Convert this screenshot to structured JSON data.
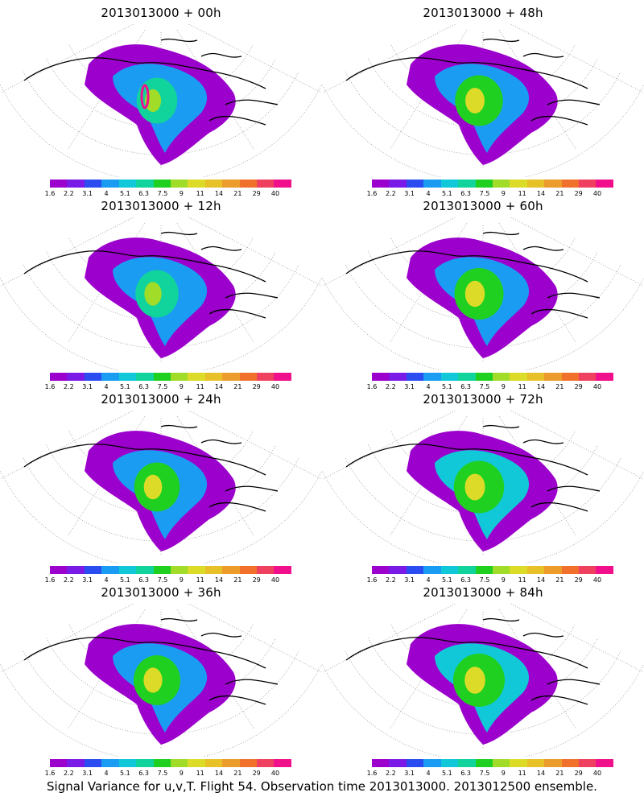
{
  "panels": [
    {
      "title": "2013013000 + 00h",
      "lead": "00h",
      "intensity": 0.35,
      "peak": "magenta"
    },
    {
      "title": "2013013000 + 48h",
      "lead": "48h",
      "intensity": 0.65
    },
    {
      "title": "2013013000 + 12h",
      "lead": "12h",
      "intensity": 0.45
    },
    {
      "title": "2013013000 + 60h",
      "lead": "60h",
      "intensity": 0.7
    },
    {
      "title": "2013013000 + 24h",
      "lead": "24h",
      "intensity": 0.55
    },
    {
      "title": "2013013000 + 72h",
      "lead": "72h",
      "intensity": 0.75
    },
    {
      "title": "2013013000 + 36h",
      "lead": "36h",
      "intensity": 0.6
    },
    {
      "title": "2013013000 + 84h",
      "lead": "84h",
      "intensity": 0.8
    }
  ],
  "colorbar": {
    "colors": [
      "#9c00cc",
      "#7a1ae6",
      "#2a4cf0",
      "#1a9cf2",
      "#10c8d8",
      "#10d49c",
      "#20d020",
      "#a0dc28",
      "#dcdc28",
      "#e8c028",
      "#ec9c2a",
      "#f0702c",
      "#f04060",
      "#f0108c"
    ],
    "ticks": [
      "1.6",
      "2.2",
      "3.1",
      "4",
      "5.1",
      "6.3",
      "7.5",
      "9",
      "11",
      "14",
      "21",
      "29",
      "40"
    ]
  },
  "caption": "Signal Variance for u,v,T. Flight 54. Observation time 2013013000. 2013012500 ensemble."
}
